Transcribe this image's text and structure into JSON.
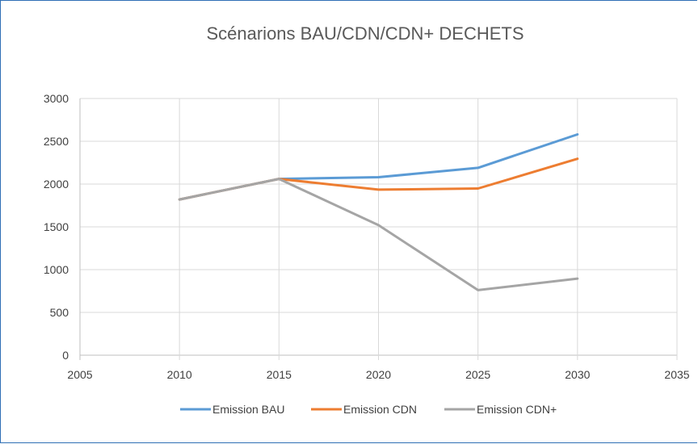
{
  "chart_data": {
    "type": "line",
    "title": "Scénarions BAU/CDN/CDN+ DECHETS",
    "xlabel": "",
    "ylabel": "",
    "xlim": [
      2005,
      2035
    ],
    "ylim": [
      0,
      3000
    ],
    "x_ticks": [
      "2005",
      "2010",
      "2015",
      "2020",
      "2025",
      "2030",
      "2035"
    ],
    "y_ticks": [
      "0",
      "500",
      "1000",
      "1500",
      "2000",
      "2500",
      "3000"
    ],
    "grid": true,
    "legend_position": "bottom",
    "series": [
      {
        "name": "Emission BAU",
        "color": "#5b9bd5",
        "x": [
          2010,
          2015,
          2020,
          2025,
          2030
        ],
        "values": [
          1820,
          2060,
          2080,
          2190,
          2580
        ]
      },
      {
        "name": "Emission CDN",
        "color": "#ed7d31",
        "x": [
          2010,
          2015,
          2020,
          2025,
          2030
        ],
        "values": [
          1820,
          2060,
          1935,
          1948,
          2295
        ]
      },
      {
        "name": "Emission CDN+",
        "color": "#a5a5a5",
        "x": [
          2010,
          2015,
          2020,
          2025,
          2030
        ],
        "values": [
          1820,
          2060,
          1520,
          760,
          895
        ]
      }
    ]
  }
}
